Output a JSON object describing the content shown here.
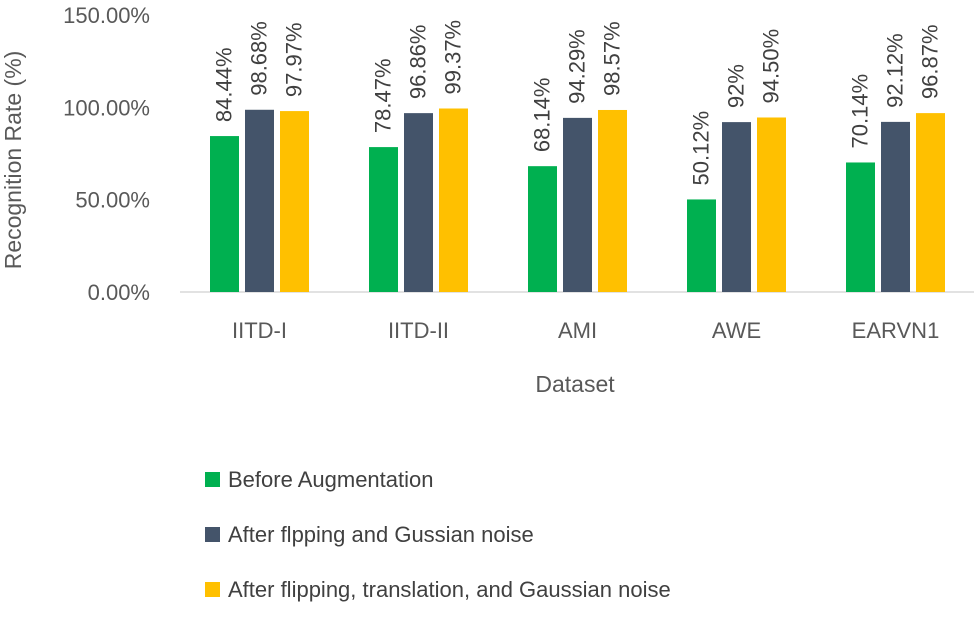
{
  "chart_data": {
    "type": "bar",
    "categories": [
      "IITD-I",
      "IITD-II",
      "AMI",
      "AWE",
      "EARVN1"
    ],
    "series": [
      {
        "name": "Before Augmentation",
        "values": [
          84.44,
          78.47,
          68.14,
          50.12,
          70.14
        ],
        "labels": [
          "84.44%",
          "78.47%",
          "68.14%",
          "50.12%",
          "70.14%"
        ],
        "color": "#00B050"
      },
      {
        "name": "After flpping and Gussian noise",
        "values": [
          98.68,
          96.86,
          94.29,
          92,
          92.12
        ],
        "labels": [
          "98.68%",
          "96.86%",
          "94.29%",
          "92%",
          "92.12%"
        ],
        "color": "#44546A"
      },
      {
        "name": "After flipping, translation, and Gaussian noise",
        "values": [
          97.97,
          99.37,
          98.57,
          94.5,
          96.87
        ],
        "labels": [
          "97.97%",
          "99.37%",
          "98.57%",
          "94.50%",
          "96.87%"
        ],
        "color": "#FFC000"
      }
    ],
    "y_ticks": [
      "0.00%",
      "50.00%",
      "100.00%",
      "150.00%"
    ],
    "y_tick_values": [
      0,
      50,
      100,
      150
    ],
    "ylim": [
      0,
      150
    ],
    "xlabel": "Dataset",
    "ylabel": "Recognition Rate (%)",
    "grid": false,
    "legend_position": "bottom"
  }
}
